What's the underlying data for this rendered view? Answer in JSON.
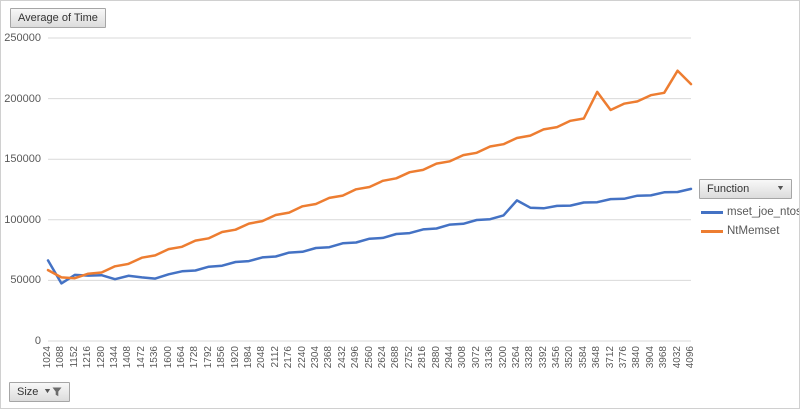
{
  "field_buttons": {
    "value_label": "Average of Time",
    "axis_label": "Size",
    "legend_label": "Function",
    "dropdown_arrow": "▼"
  },
  "legend": {
    "items": [
      {
        "label": "mset_joe_ntos",
        "color": "#4472C4"
      },
      {
        "label": "NtMemset",
        "color": "#ED7D31"
      }
    ]
  },
  "colors": {
    "gridline": "#D9D9D9",
    "axis_text": "#595959",
    "series_blue": "#4472C4",
    "series_orange": "#ED7D31"
  },
  "chart_data": {
    "type": "line",
    "title": "Average of Time",
    "xlabel": "Size",
    "legend_title": "Function",
    "legend_position": "right",
    "grid": true,
    "ylim": [
      0,
      250000
    ],
    "yticks": [
      0,
      50000,
      100000,
      150000,
      200000,
      250000
    ],
    "x": [
      1024,
      1088,
      1152,
      1216,
      1280,
      1344,
      1408,
      1472,
      1536,
      1600,
      1664,
      1728,
      1792,
      1856,
      1920,
      1984,
      2048,
      2112,
      2176,
      2240,
      2304,
      2368,
      2432,
      2496,
      2560,
      2624,
      2688,
      2752,
      2816,
      2880,
      2944,
      3008,
      3072,
      3136,
      3200,
      3264,
      3328,
      3392,
      3456,
      3520,
      3584,
      3648,
      3712,
      3776,
      3840,
      3904,
      3968,
      4032,
      4096
    ],
    "series": [
      {
        "name": "mset_joe_ntos",
        "color": "#4472C4",
        "values": [
          66500,
          47500,
          54500,
          54000,
          54300,
          51000,
          53800,
          52500,
          51500,
          55000,
          57500,
          58200,
          61300,
          62100,
          65200,
          65900,
          69000,
          69700,
          72900,
          73600,
          76700,
          77400,
          80600,
          81300,
          84400,
          85100,
          88300,
          89000,
          92100,
          92800,
          96000,
          96700,
          99800,
          100500,
          103600,
          116000,
          110000,
          109500,
          111500,
          111700,
          114300,
          114500,
          117100,
          117300,
          119900,
          120100,
          122700,
          122900,
          125500
        ]
      },
      {
        "name": "NtMemset",
        "color": "#ED7D31",
        "values": [
          58500,
          52500,
          51800,
          55500,
          56500,
          61600,
          63600,
          68700,
          70600,
          75800,
          77700,
          82800,
          84700,
          89900,
          91800,
          96900,
          98900,
          104000,
          105900,
          111100,
          113000,
          118100,
          120000,
          125200,
          127100,
          132200,
          134200,
          139300,
          141200,
          146400,
          148300,
          153400,
          155300,
          160500,
          162400,
          167500,
          169500,
          174600,
          176500,
          181700,
          183600,
          205500,
          190600,
          195800,
          197700,
          202800,
          204800,
          223000,
          212000
        ]
      }
    ]
  }
}
